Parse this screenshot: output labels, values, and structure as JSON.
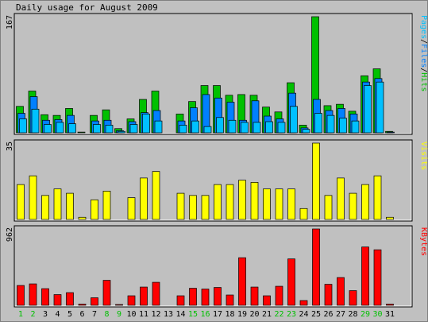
{
  "title": "Daily usage for August 2009",
  "colors": {
    "background": "#c0c0c0",
    "panel_border": "#000000",
    "hits": "#00c000",
    "files": "#0080ff",
    "pages": "#00c0ff",
    "visits": "#ffff00",
    "kbytes": "#ff0000",
    "weekday_label": "#000000",
    "weekend_label": "#00c000"
  },
  "chart_data": [
    {
      "type": "bar",
      "panel": "hits_files_pages",
      "max_label": "167",
      "ylim": [
        0,
        167
      ],
      "legend": [
        "Pages",
        "Files",
        "Hits"
      ],
      "legend_separator": "/",
      "legend_placement": "right-vertical",
      "categories": [
        "1",
        "2",
        "3",
        "4",
        "5",
        "6",
        "7",
        "8",
        "9",
        "10",
        "11",
        "12",
        "13",
        "14",
        "15",
        "16",
        "17",
        "18",
        "19",
        "20",
        "21",
        "22",
        "23",
        "24",
        "25",
        "26",
        "27",
        "28",
        "29",
        "30",
        "31"
      ],
      "weekend_days": [
        "1",
        "2",
        "8",
        "9",
        "15",
        "16",
        "22",
        "23",
        "29",
        "30"
      ],
      "series": [
        {
          "name": "Hits",
          "values": [
            38,
            60,
            26,
            25,
            35,
            1,
            25,
            33,
            6,
            20,
            48,
            60,
            0,
            27,
            45,
            68,
            68,
            54,
            55,
            54,
            37,
            30,
            72,
            11,
            167,
            39,
            41,
            31,
            82,
            92,
            2
          ]
        },
        {
          "name": "Files",
          "values": [
            28,
            52,
            18,
            19,
            25,
            0,
            17,
            18,
            3,
            16,
            29,
            32,
            0,
            17,
            36,
            55,
            50,
            44,
            18,
            46,
            24,
            20,
            57,
            7,
            48,
            32,
            35,
            27,
            73,
            78,
            1
          ]
        },
        {
          "name": "Pages",
          "values": [
            20,
            34,
            12,
            15,
            13,
            0,
            12,
            11,
            2,
            12,
            27,
            17,
            0,
            11,
            17,
            9,
            22,
            18,
            15,
            15,
            16,
            15,
            38,
            5,
            28,
            25,
            21,
            17,
            68,
            73,
            0
          ]
        }
      ]
    },
    {
      "type": "bar",
      "panel": "visits",
      "max_label": "35",
      "ylim": [
        0,
        35
      ],
      "legend": [
        "Visits"
      ],
      "legend_placement": "right-vertical",
      "categories": [
        "1",
        "2",
        "3",
        "4",
        "5",
        "6",
        "7",
        "8",
        "9",
        "10",
        "11",
        "12",
        "13",
        "14",
        "15",
        "16",
        "17",
        "18",
        "19",
        "20",
        "21",
        "22",
        "23",
        "24",
        "25",
        "26",
        "27",
        "28",
        "29",
        "30",
        "31"
      ],
      "series": [
        {
          "name": "Visits",
          "values": [
            16,
            20,
            11,
            14,
            12,
            1,
            9,
            13,
            0,
            10,
            19,
            22,
            0,
            12,
            11,
            11,
            16,
            16,
            18,
            17,
            14,
            14,
            14,
            5,
            35,
            11,
            19,
            12,
            16,
            20,
            1
          ]
        }
      ]
    },
    {
      "type": "bar",
      "panel": "kbytes",
      "max_label": "962",
      "ylim": [
        0,
        962
      ],
      "legend": [
        "KBytes"
      ],
      "legend_placement": "right-vertical",
      "categories": [
        "1",
        "2",
        "3",
        "4",
        "5",
        "6",
        "7",
        "8",
        "9",
        "10",
        "11",
        "12",
        "13",
        "14",
        "15",
        "16",
        "17",
        "18",
        "19",
        "20",
        "21",
        "22",
        "23",
        "24",
        "25",
        "26",
        "27",
        "28",
        "29",
        "30",
        "31"
      ],
      "series": [
        {
          "name": "KBytes",
          "values": [
            250,
            270,
            210,
            135,
            160,
            15,
            95,
            315,
            10,
            120,
            230,
            290,
            0,
            120,
            215,
            205,
            225,
            130,
            600,
            230,
            120,
            240,
            585,
            60,
            962,
            265,
            350,
            185,
            735,
            700,
            15
          ]
        }
      ]
    }
  ]
}
